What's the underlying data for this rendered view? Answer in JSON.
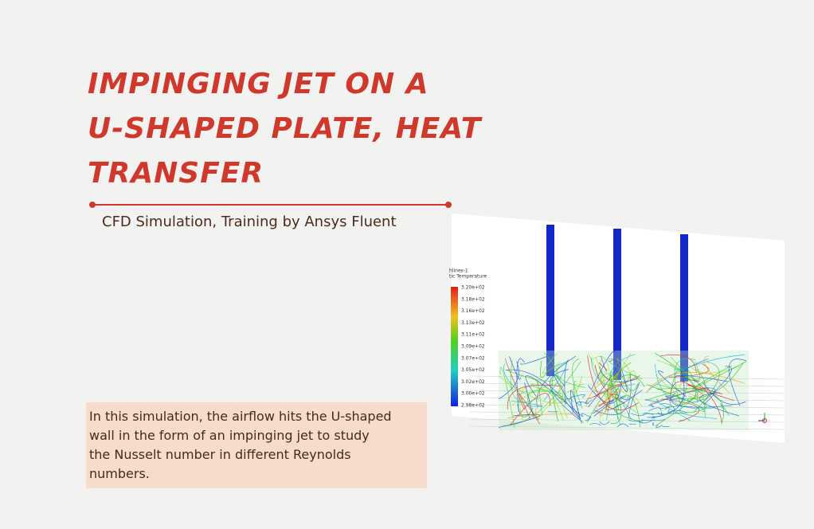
{
  "header": {
    "title_lines": [
      "IMPINGING JET ON A",
      "U-SHAPED PLATE, HEAT",
      "TRANSFER"
    ],
    "subtitle": "CFD Simulation, Training by Ansys Fluent"
  },
  "description": {
    "lines": [
      "In this simulation, the airflow hits the U-shaped",
      "wall in the form of an impinging jet to study",
      "the Nusselt number in different Reynolds",
      "numbers."
    ]
  },
  "figure": {
    "legend_title_lines": [
      "hlines-1",
      "tic Temperature"
    ],
    "legend_labels": [
      "3.20e+02",
      "3.18e+02",
      "3.16e+02",
      "3.13e+02",
      "3.11e+02",
      "3.09e+02",
      "3.07e+02",
      "3.05e+02",
      "3.02e+02",
      "3.00e+02",
      "2.98e+02"
    ]
  }
}
